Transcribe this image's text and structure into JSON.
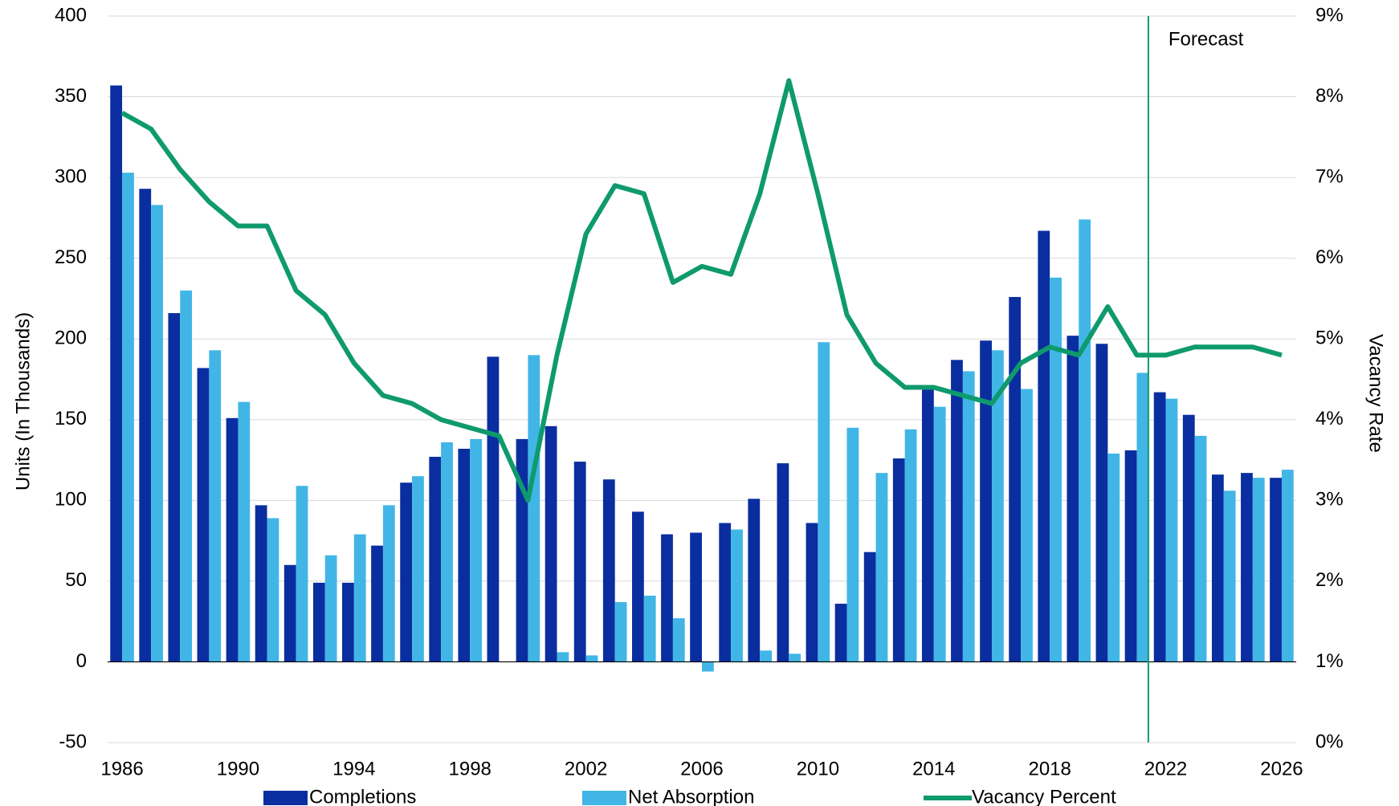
{
  "chart_data": {
    "type": "bar_line",
    "categories": [
      "1986",
      null,
      null,
      null,
      "1990",
      null,
      null,
      null,
      "1994",
      null,
      null,
      null,
      "1998",
      null,
      null,
      null,
      "2002",
      null,
      null,
      null,
      "2006",
      null,
      null,
      null,
      "2010",
      null,
      null,
      null,
      "2014",
      null,
      null,
      null,
      "2018",
      null,
      null,
      null,
      "2022",
      null,
      null,
      null,
      "2026"
    ],
    "series": [
      {
        "name": "Completions",
        "color": "#0a2ea0",
        "axis": "y",
        "values": [
          357,
          293,
          216,
          182,
          151,
          97,
          60,
          49,
          49,
          72,
          111,
          127,
          132,
          189,
          138,
          146,
          124,
          113,
          93,
          79,
          80,
          86,
          101,
          123,
          86,
          36,
          68,
          126,
          169,
          187,
          199,
          226,
          267,
          202,
          197,
          131,
          167,
          153,
          116,
          117,
          114
        ]
      },
      {
        "name": "Net Absorption",
        "color": "#41b6e6",
        "axis": "y",
        "values": [
          303,
          283,
          230,
          193,
          161,
          89,
          109,
          66,
          79,
          97,
          115,
          136,
          138,
          null,
          190,
          6,
          4,
          37,
          41,
          27,
          -6,
          82,
          7,
          5,
          198,
          145,
          117,
          144,
          158,
          180,
          193,
          169,
          238,
          274,
          129,
          179,
          163,
          140,
          106,
          114,
          119
        ]
      },
      {
        "name": "Vacancy Percent",
        "color": "#0f9a6e",
        "axis": "y2",
        "type": "line",
        "values": [
          7.8,
          7.6,
          7.1,
          6.7,
          6.4,
          6.4,
          5.6,
          5.3,
          4.7,
          4.3,
          4.2,
          4.0,
          3.9,
          3.8,
          3.0,
          4.8,
          6.3,
          6.9,
          6.8,
          5.7,
          5.9,
          5.8,
          6.8,
          8.2,
          6.8,
          5.3,
          4.7,
          4.4,
          4.4,
          4.3,
          4.2,
          4.7,
          4.9,
          4.8,
          5.4,
          4.8,
          4.8,
          4.9,
          4.9,
          4.9,
          4.8
        ]
      }
    ],
    "ylabel": "Units (In Thousands)",
    "y2label": "Vacancy Rate",
    "ylim": [
      -50,
      400
    ],
    "yticks": [
      -50,
      0,
      50,
      100,
      150,
      200,
      250,
      300,
      350,
      400
    ],
    "y2lim": [
      0,
      9
    ],
    "y2ticks": [
      {
        "value": 0,
        "label": "0%"
      },
      {
        "value": 1,
        "label": "1%"
      },
      {
        "value": 2,
        "label": "2%"
      },
      {
        "value": 3,
        "label": "3%"
      },
      {
        "value": 4,
        "label": "4%"
      },
      {
        "value": 5,
        "label": "5%"
      },
      {
        "value": 6,
        "label": "6%"
      },
      {
        "value": 7,
        "label": "7%"
      },
      {
        "value": 8,
        "label": "8%"
      },
      {
        "value": 9,
        "label": "9%"
      }
    ],
    "annotation": "Forecast",
    "grid": true,
    "legend": "bottom"
  }
}
